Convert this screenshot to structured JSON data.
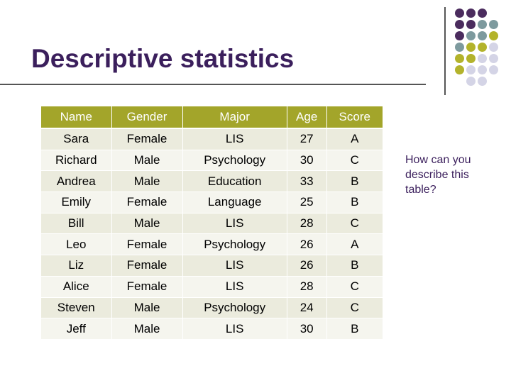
{
  "slide": {
    "title": "Descriptive statistics",
    "side_question": "How can you describe this table?"
  },
  "table": {
    "headers": [
      "Name",
      "Gender",
      "Major",
      "Age",
      "Score"
    ],
    "rows": [
      [
        "Sara",
        "Female",
        "LIS",
        "27",
        "A"
      ],
      [
        "Richard",
        "Male",
        "Psychology",
        "30",
        "C"
      ],
      [
        "Andrea",
        "Male",
        "Education",
        "33",
        "B"
      ],
      [
        "Emily",
        "Female",
        "Language",
        "25",
        "B"
      ],
      [
        "Bill",
        "Male",
        "LIS",
        "28",
        "C"
      ],
      [
        "Leo",
        "Female",
        "Psychology",
        "26",
        "A"
      ],
      [
        "Liz",
        "Female",
        "LIS",
        "26",
        "B"
      ],
      [
        "Alice",
        "Female",
        "LIS",
        "28",
        "C"
      ],
      [
        "Steven",
        "Male",
        "Psychology",
        "24",
        "C"
      ],
      [
        "Jeff",
        "Male",
        "LIS",
        "30",
        "B"
      ]
    ]
  },
  "colors": {
    "title": "#3b1f5c",
    "header_bg": "#a3a52a",
    "row_odd": "#ebebdd",
    "row_even": "#f5f5ee",
    "dot_purple": "#4b2c5e",
    "dot_teal": "#7d9a9e",
    "dot_olive": "#b3b32b",
    "dot_lavender": "#d4d4e6"
  }
}
